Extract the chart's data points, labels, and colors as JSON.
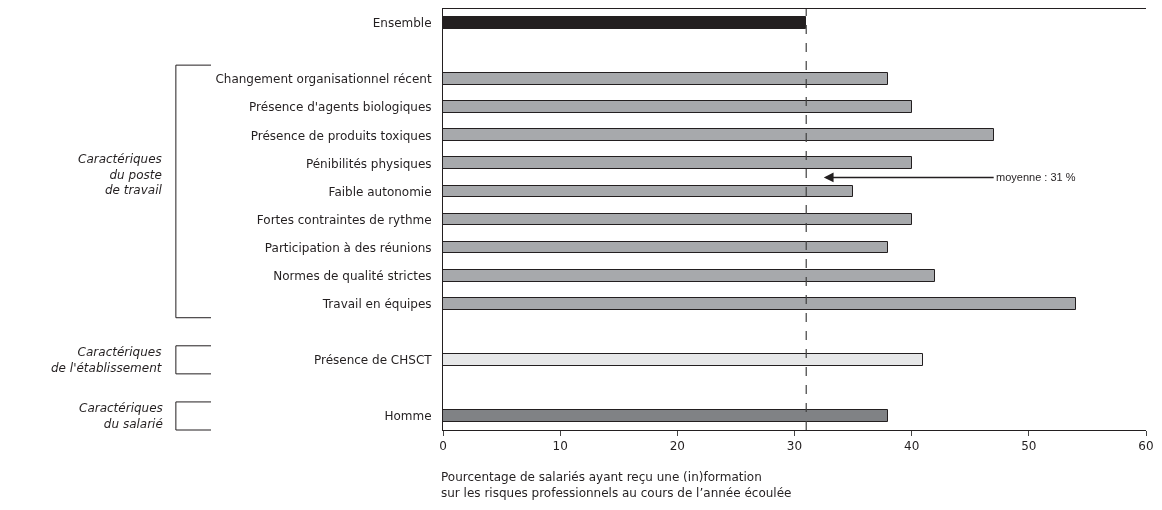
{
  "chart_data": {
    "type": "bar",
    "orientation": "horizontal",
    "categories": [
      "Ensemble",
      null,
      "Changement organisationnel récent",
      "Présence d'agents biologiques",
      "Présence de produits toxiques",
      "Pénibilités physiques",
      "Faible autonomie",
      "Fortes contraintes de rythme",
      "Participation à des réunions",
      "Normes de qualité strictes",
      "Travail en équipes",
      null,
      "Présence de CHSCT",
      null,
      "Homme"
    ],
    "values": [
      31,
      null,
      38,
      40,
      47,
      40,
      35,
      40,
      38,
      42,
      54,
      null,
      41,
      null,
      38
    ],
    "colors": [
      "#231f20",
      null,
      "#a7a9ac",
      "#a7a9ac",
      "#a7a9ac",
      "#a7a9ac",
      "#a7a9ac",
      "#a7a9ac",
      "#a7a9ac",
      "#a7a9ac",
      "#a7a9ac",
      null,
      "#e6e7e8",
      null,
      "#808285"
    ],
    "xlim": [
      0,
      60
    ],
    "xticks": [
      0,
      10,
      20,
      30,
      40,
      50,
      60
    ],
    "xlabel": "Pourcentage de salariés ayant reçu une (in)formation\nsur les risques professionnels au cours de l’année écoulée",
    "ref_lines": [
      {
        "axis": "x",
        "value": 31,
        "label": "moyenne : 31 %",
        "color": "#404040",
        "line_style": "dashed"
      }
    ],
    "annotations": [
      "Caractériques\ndu poste\nde travail",
      "Caractériques\nde l'établissement",
      "Caractériques\ndu salarié"
    ],
    "legend": false
  }
}
